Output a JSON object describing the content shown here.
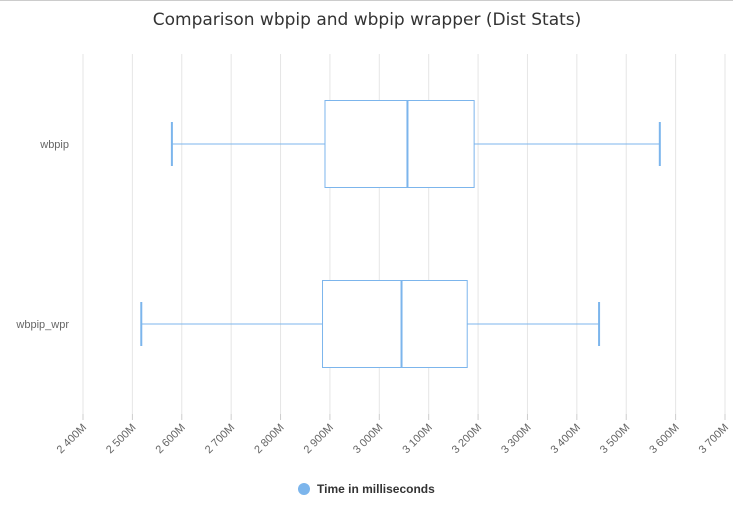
{
  "chart_data": {
    "type": "boxplot",
    "title": "Comparison wbpip and wbpip wrapper (Dist Stats)",
    "orientation": "horizontal",
    "categories": [
      "wbpip",
      "wbpip_wpr"
    ],
    "series": [
      {
        "name": "Time in milliseconds",
        "color": "#7cb5ec",
        "boxes": [
          {
            "low": 2580,
            "q1": 2890,
            "median": 3057,
            "q3": 3192,
            "high": 3568
          },
          {
            "low": 2518,
            "q1": 2885,
            "median": 3045,
            "q3": 3178,
            "high": 3445
          }
        ]
      }
    ],
    "x_axis": {
      "min": 2400,
      "max": 3700,
      "tick_step": 100,
      "tick_labels": [
        "2 400M",
        "2 500M",
        "2 600M",
        "2 700M",
        "2 800M",
        "2 900M",
        "3 000M",
        "3 100M",
        "3 200M",
        "3 300M",
        "3 400M",
        "3 500M",
        "3 600M",
        "3 700M"
      ]
    },
    "grid": true,
    "legend": {
      "position": "bottom-center",
      "entries": [
        "Time in milliseconds"
      ]
    }
  }
}
